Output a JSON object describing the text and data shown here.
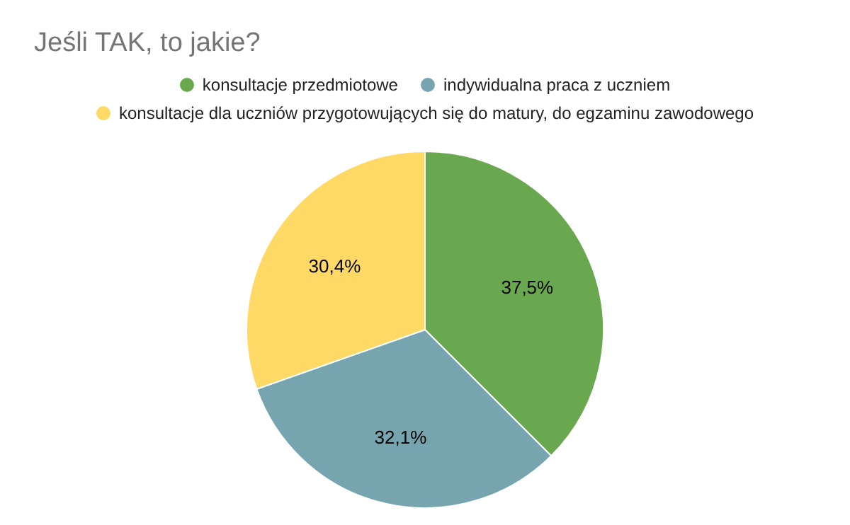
{
  "chart_data": {
    "type": "pie",
    "title": "Jeśli TAK, to jakie?",
    "categories": [
      "konsultacje przedmiotowe",
      "indywidualna praca z uczniem",
      "konsultacje dla uczniów przygotowujących się do matury, do egzaminu zawodowego"
    ],
    "values": [
      37.5,
      32.1,
      30.4
    ],
    "colors": [
      "#6aa84f",
      "#76a5af",
      "#ffd966"
    ],
    "value_labels": [
      "37,5%",
      "32,1%",
      "30,4%"
    ],
    "legend": "top"
  }
}
